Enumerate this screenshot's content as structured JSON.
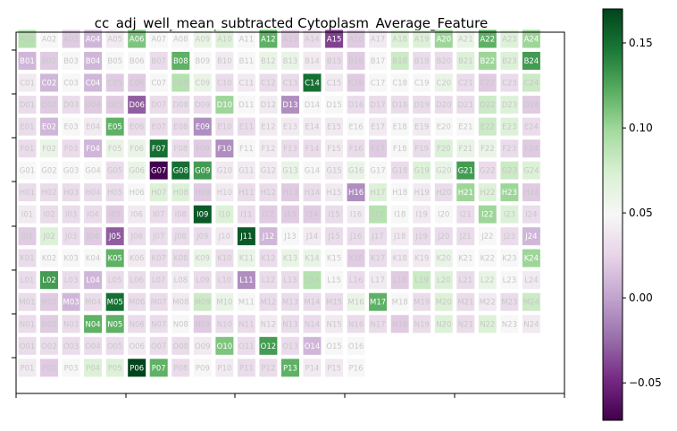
{
  "chart_data": {
    "type": "heatmap",
    "title": "cc_adj_well_mean_subtracted Cytoplasm_Average_Feature",
    "rows": [
      "A",
      "B",
      "C",
      "D",
      "E",
      "F",
      "G",
      "H",
      "I",
      "J",
      "K",
      "L",
      "M",
      "N",
      "O",
      "P"
    ],
    "cols": 24,
    "colorbar": {
      "range": [
        -0.072,
        0.17
      ],
      "ticks": [
        -0.05,
        0.0,
        0.05,
        0.1,
        0.15
      ],
      "tick_labels": [
        "−0.05",
        "0.00",
        "0.05",
        "0.10",
        "0.15"
      ]
    },
    "grid": false,
    "values": [
      [
        0.09,
        0.05,
        0.02,
        0.01,
        0.04,
        0.11,
        0.05,
        0.05,
        0.06,
        0.07,
        0.05,
        0.12,
        0.02,
        0.03,
        -0.04,
        0.02,
        0.04,
        0.07,
        0.07,
        0.1,
        0.06,
        0.12,
        0.07,
        0.1
      ],
      [
        0.01,
        0.02,
        0.05,
        0.01,
        0.05,
        0.05,
        0.03,
        0.12,
        0.05,
        0.04,
        0.05,
        0.06,
        0.06,
        0.04,
        0.03,
        0.02,
        0.05,
        0.08,
        0.03,
        0.03,
        0.07,
        0.1,
        0.07,
        0.13
      ],
      [
        0.04,
        0.01,
        0.05,
        0.01,
        0.02,
        0.02,
        0.05,
        0.09,
        0.06,
        0.03,
        0.04,
        0.03,
        0.03,
        0.15,
        0.04,
        0.02,
        0.05,
        0.05,
        0.05,
        0.06,
        0.03,
        0.02,
        0.03,
        0.08
      ],
      [
        0.03,
        0.02,
        0.03,
        0.02,
        0.02,
        -0.03,
        0.03,
        0.03,
        0.03,
        0.1,
        0.05,
        0.04,
        -0.01,
        0.05,
        0.05,
        0.03,
        0.03,
        0.03,
        0.03,
        0.03,
        0.03,
        0.08,
        0.07,
        0.02
      ],
      [
        0.03,
        0.01,
        0.05,
        0.04,
        0.12,
        0.03,
        0.03,
        0.03,
        -0.01,
        0.03,
        0.03,
        0.04,
        0.04,
        0.04,
        0.04,
        0.05,
        0.04,
        0.05,
        0.04,
        0.05,
        0.05,
        0.08,
        0.07,
        0.03
      ],
      [
        0.03,
        0.06,
        0.03,
        0.01,
        0.06,
        0.06,
        0.15,
        0.03,
        0.02,
        -0.01,
        0.05,
        0.04,
        0.03,
        0.03,
        0.04,
        0.03,
        0.02,
        0.05,
        0.03,
        0.07,
        0.06,
        0.06,
        0.03,
        0.02
      ],
      [
        0.05,
        0.05,
        0.05,
        0.05,
        0.03,
        0.06,
        -0.07,
        0.15,
        0.13,
        0.04,
        0.04,
        0.04,
        0.06,
        0.05,
        0.04,
        0.06,
        0.05,
        0.03,
        0.07,
        0.06,
        0.13,
        0.03,
        0.08,
        0.07
      ],
      [
        0.03,
        0.03,
        0.03,
        0.03,
        0.03,
        0.05,
        0.07,
        0.07,
        0.02,
        0.04,
        0.03,
        0.03,
        0.02,
        0.03,
        0.04,
        -0.01,
        0.07,
        0.05,
        0.04,
        0.03,
        0.1,
        0.07,
        0.1,
        0.02
      ],
      [
        0.04,
        0.03,
        0.03,
        0.03,
        0.02,
        0.04,
        0.03,
        0.03,
        0.16,
        0.07,
        0.03,
        0.02,
        0.02,
        0.02,
        0.03,
        0.04,
        0.09,
        0.05,
        0.04,
        0.05,
        0.03,
        0.1,
        0.07,
        0.03
      ],
      [
        0.02,
        0.07,
        0.03,
        0.02,
        -0.03,
        0.03,
        0.03,
        0.03,
        0.03,
        0.04,
        0.16,
        0.01,
        0.05,
        0.04,
        0.03,
        0.03,
        0.03,
        0.04,
        0.03,
        0.03,
        0.03,
        0.05,
        0.03,
        0.01
      ],
      [
        0.03,
        0.05,
        0.05,
        0.05,
        0.12,
        0.04,
        0.03,
        0.03,
        0.06,
        0.03,
        0.06,
        0.03,
        0.06,
        0.06,
        0.05,
        0.02,
        0.03,
        0.04,
        0.04,
        0.06,
        0.05,
        0.05,
        0.05,
        0.1
      ],
      [
        0.03,
        0.13,
        0.03,
        0.01,
        0.03,
        0.03,
        0.03,
        0.04,
        0.03,
        0.03,
        -0.01,
        0.03,
        0.03,
        0.09,
        0.05,
        0.03,
        0.04,
        0.02,
        0.08,
        0.07,
        0.03,
        0.06,
        0.05,
        0.04
      ],
      [
        0.03,
        0.02,
        0.01,
        0.03,
        0.15,
        0.03,
        0.03,
        0.04,
        0.08,
        0.06,
        0.05,
        0.03,
        0.03,
        0.03,
        0.03,
        0.06,
        0.12,
        0.05,
        0.03,
        0.07,
        0.03,
        0.04,
        0.03,
        0.08
      ],
      [
        0.03,
        0.02,
        0.03,
        0.12,
        0.12,
        0.03,
        0.03,
        0.05,
        0.02,
        0.03,
        0.03,
        0.04,
        0.03,
        0.03,
        0.04,
        0.03,
        0.03,
        0.02,
        0.03,
        0.07,
        0.03,
        0.07,
        0.05,
        0.04
      ],
      [
        0.03,
        0.03,
        0.03,
        0.03,
        0.03,
        0.04,
        0.03,
        0.03,
        0.04,
        0.11,
        0.03,
        0.13,
        0.03,
        0.01,
        0.05,
        0.05,
        null,
        null,
        null,
        null,
        null,
        null,
        null,
        null
      ],
      [
        0.04,
        0.02,
        0.05,
        0.07,
        0.07,
        0.17,
        0.12,
        0.03,
        0.05,
        0.04,
        0.03,
        0.03,
        0.12,
        0.04,
        0.04,
        0.05,
        null,
        null,
        null,
        null,
        null,
        null,
        null,
        null
      ]
    ]
  }
}
